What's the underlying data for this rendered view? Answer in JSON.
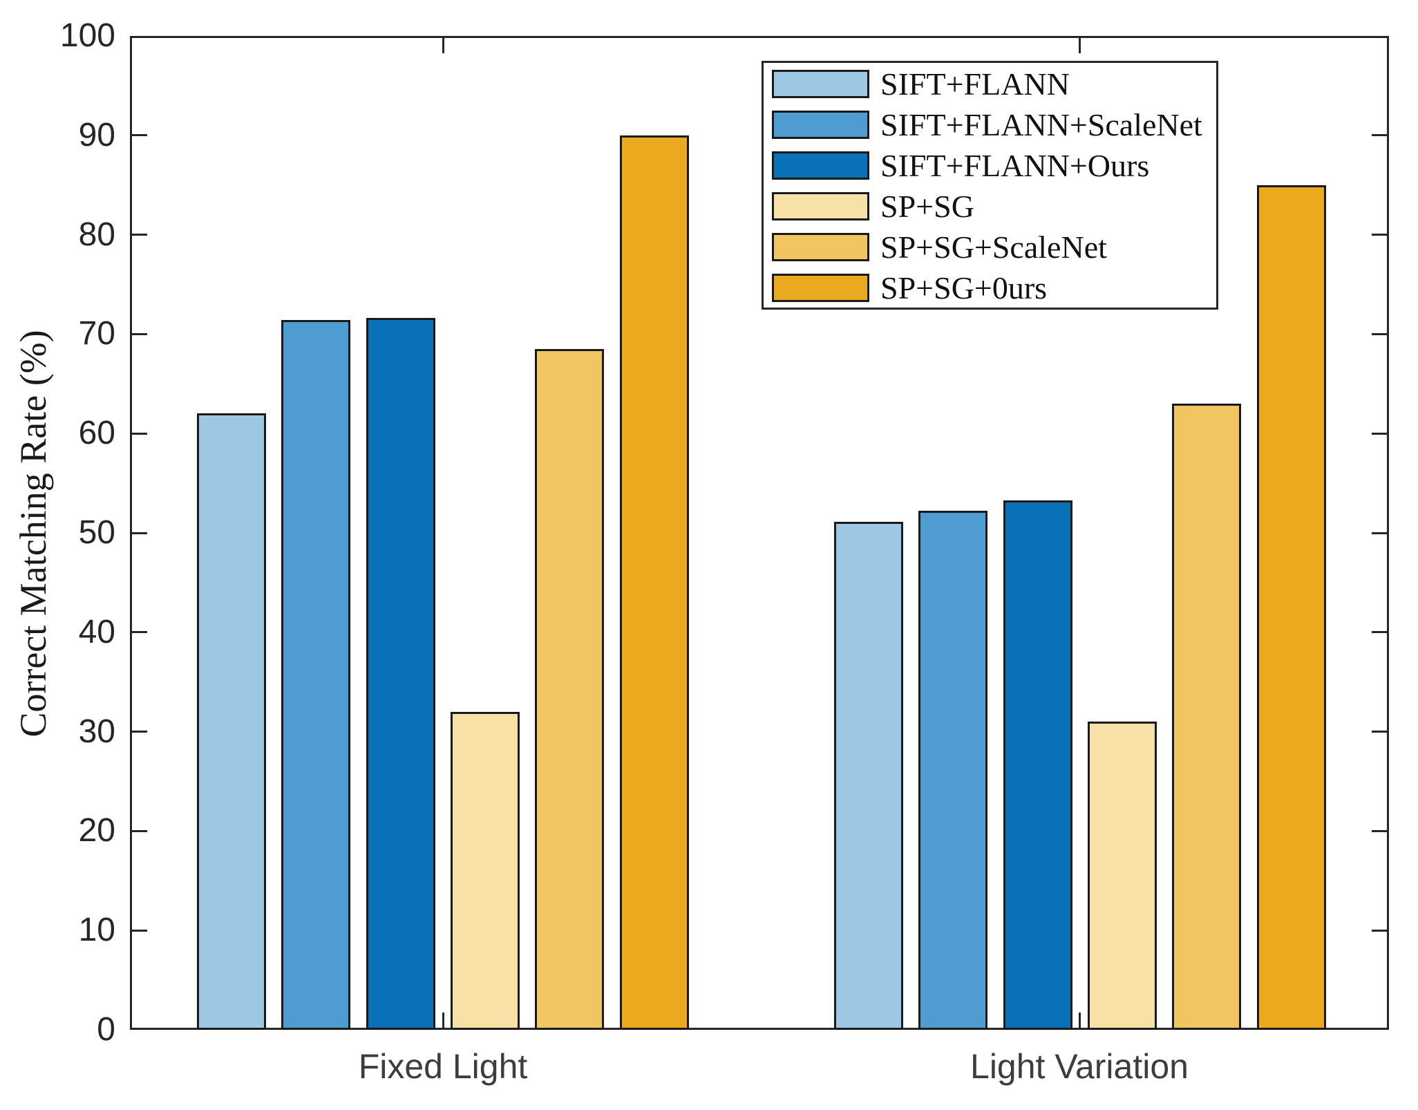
{
  "figure": {
    "background": "#ffffff",
    "axis_color": "#262626",
    "bar_edge_color": "#1a1a1a",
    "tick_label_color": "#262626",
    "category_label_color": "#3d3d3d"
  },
  "chart_data": {
    "type": "bar",
    "title": "",
    "xlabel": "",
    "ylabel": "Correct Matching Rate (%)",
    "ylim": [
      0,
      100
    ],
    "ytick_step": 10,
    "ytick_labels": [
      "0",
      "10",
      "20",
      "30",
      "40",
      "50",
      "60",
      "70",
      "80",
      "90",
      "100"
    ],
    "grid": false,
    "legend_position": "top-right-inside",
    "categories": [
      "Fixed Light",
      "Light Variation"
    ],
    "series": [
      {
        "name": "SIFT+FLANN",
        "color": "#9DC7E3",
        "values": [
          62,
          51.1
        ]
      },
      {
        "name": "SIFT+FLANN+ScaleNet",
        "color": "#4F9CD2",
        "values": [
          71.4,
          52.2
        ]
      },
      {
        "name": "SIFT+FLANN+Ours",
        "color": "#0871B7",
        "values": [
          71.6,
          53.3
        ]
      },
      {
        "name": "SP+SG",
        "color": "#F7E1A6",
        "values": [
          32,
          31
        ]
      },
      {
        "name": "SP+SG+ScaleNet",
        "color": "#F1C55F",
        "values": [
          68.5,
          63
        ]
      },
      {
        "name": "SP+SG+0urs",
        "color": "#EBA91F",
        "values": [
          90,
          85
        ]
      }
    ]
  }
}
